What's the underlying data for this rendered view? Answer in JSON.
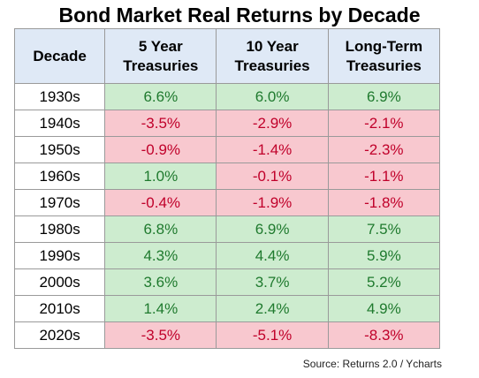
{
  "title": "Bond Market Real Returns by Decade",
  "chart_data": {
    "type": "table",
    "title": "Bond Market Real Returns by Decade",
    "columns": [
      "Decade",
      "5 Year Treasuries",
      "10 Year Treasuries",
      "Long-Term Treasuries"
    ],
    "header_lines": [
      [
        "Decade"
      ],
      [
        "5 Year",
        "Treasuries"
      ],
      [
        "10 Year",
        "Treasuries"
      ],
      [
        "Long-Term",
        "Treasuries"
      ]
    ],
    "rows": [
      {
        "decade": "1930s",
        "values": [
          6.6,
          6.0,
          6.9
        ],
        "labels": [
          "6.6%",
          "6.0%",
          "6.9%"
        ]
      },
      {
        "decade": "1940s",
        "values": [
          -3.5,
          -2.9,
          -2.1
        ],
        "labels": [
          "-3.5%",
          "-2.9%",
          "-2.1%"
        ]
      },
      {
        "decade": "1950s",
        "values": [
          -0.9,
          -1.4,
          -2.3
        ],
        "labels": [
          "-0.9%",
          "-1.4%",
          "-2.3%"
        ]
      },
      {
        "decade": "1960s",
        "values": [
          1.0,
          -0.1,
          -1.1
        ],
        "labels": [
          "1.0%",
          "-0.1%",
          "-1.1%"
        ]
      },
      {
        "decade": "1970s",
        "values": [
          -0.4,
          -1.9,
          -1.8
        ],
        "labels": [
          "-0.4%",
          "-1.9%",
          "-1.8%"
        ]
      },
      {
        "decade": "1980s",
        "values": [
          6.8,
          6.9,
          7.5
        ],
        "labels": [
          "6.8%",
          "6.9%",
          "7.5%"
        ]
      },
      {
        "decade": "1990s",
        "values": [
          4.3,
          4.4,
          5.9
        ],
        "labels": [
          "4.3%",
          "4.4%",
          "5.9%"
        ]
      },
      {
        "decade": "2000s",
        "values": [
          3.6,
          3.7,
          5.2
        ],
        "labels": [
          "3.6%",
          "3.7%",
          "5.2%"
        ]
      },
      {
        "decade": "2010s",
        "values": [
          1.4,
          2.4,
          4.9
        ],
        "labels": [
          "1.4%",
          "2.4%",
          "4.9%"
        ]
      },
      {
        "decade": "2020s",
        "values": [
          -3.5,
          -5.1,
          -8.3
        ],
        "labels": [
          "-3.5%",
          "-5.1%",
          "-8.3%"
        ]
      }
    ]
  },
  "colors": {
    "header_bg": "#dfe9f6",
    "positive_bg": "#cdeccf",
    "positive_text": "#1f7a2e",
    "negative_bg": "#f8c8cf",
    "negative_text": "#c0002a"
  },
  "source": "Source: Returns 2.0 / Ycharts"
}
